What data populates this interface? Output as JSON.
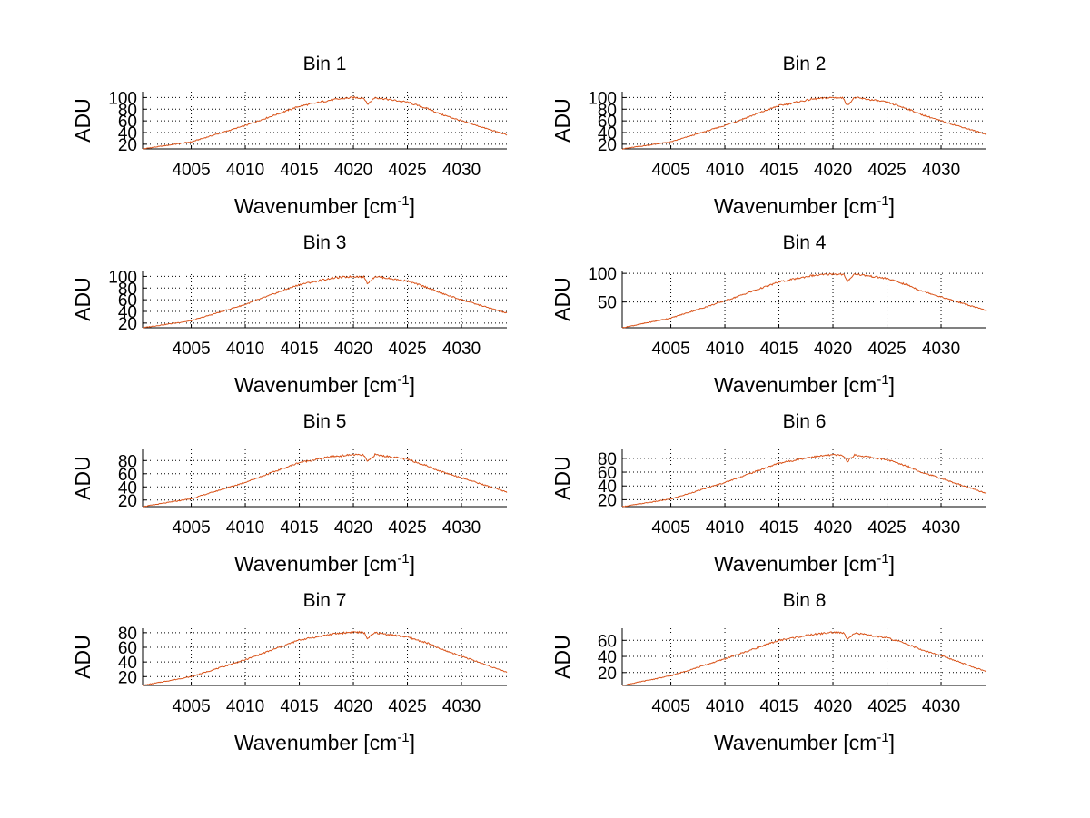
{
  "chart_data": [
    {
      "type": "line",
      "title": "Bin 1",
      "xlabel": "Wavenumber [cm",
      "xlabel_sup": "-1",
      "xlabel_end": "]",
      "ylabel": "ADU",
      "x": [
        4000.5,
        4005,
        4010,
        4015,
        4018,
        4020,
        4021,
        4021.3,
        4022,
        4025,
        4027,
        4028,
        4030,
        4034.2
      ],
      "y": [
        12,
        24,
        52,
        85,
        96,
        100,
        99,
        88,
        100,
        92,
        80,
        72,
        60,
        36
      ],
      "series_color": "#d95319",
      "xlim": [
        4000.5,
        4034.2
      ],
      "ylim": [
        12,
        110
      ],
      "xticks": [
        4005,
        4010,
        4015,
        4020,
        4025,
        4030
      ],
      "yticks": [
        20,
        40,
        60,
        80,
        100
      ]
    },
    {
      "type": "line",
      "title": "Bin 2",
      "xlabel": "Wavenumber [cm",
      "xlabel_sup": "-1",
      "xlabel_end": "]",
      "ylabel": "ADU",
      "x": [
        4000.5,
        4005,
        4010,
        4015,
        4018,
        4020,
        4021,
        4021.3,
        4022,
        4025,
        4027,
        4028,
        4030,
        4034.2
      ],
      "y": [
        12,
        24,
        52,
        86,
        97,
        100,
        99,
        86,
        100,
        92,
        80,
        72,
        60,
        37
      ],
      "series_color": "#d95319",
      "xlim": [
        4000.5,
        4034.2
      ],
      "ylim": [
        12,
        110
      ],
      "xticks": [
        4005,
        4010,
        4015,
        4020,
        4025,
        4030
      ],
      "yticks": [
        20,
        40,
        60,
        80,
        100
      ]
    },
    {
      "type": "line",
      "title": "Bin 3",
      "xlabel": "Wavenumber [cm",
      "xlabel_sup": "-1",
      "xlabel_end": "]",
      "ylabel": "ADU",
      "x": [
        4000.5,
        4005,
        4010,
        4015,
        4018,
        4020,
        4021,
        4021.3,
        4022,
        4025,
        4027,
        4028,
        4030,
        4034.2
      ],
      "y": [
        12,
        24,
        52,
        86,
        97,
        100,
        99,
        88,
        100,
        92,
        80,
        72,
        60,
        37
      ],
      "series_color": "#d95319",
      "xlim": [
        4000.5,
        4034.2
      ],
      "ylim": [
        12,
        110
      ],
      "xticks": [
        4005,
        4010,
        4015,
        4020,
        4025,
        4030
      ],
      "yticks": [
        20,
        40,
        60,
        80,
        100
      ]
    },
    {
      "type": "line",
      "title": "Bin 4",
      "xlabel": "Wavenumber [cm",
      "xlabel_sup": "-1",
      "xlabel_end": "]",
      "ylabel": "ADU",
      "x": [
        4000.5,
        4005,
        4010,
        4015,
        4018,
        4020,
        4021,
        4021.3,
        4022,
        4025,
        4027,
        4028,
        4030,
        4034.2
      ],
      "y": [
        5,
        22,
        52,
        85,
        96,
        99,
        98,
        86,
        99,
        91,
        79,
        71,
        59,
        35
      ],
      "series_color": "#d95319",
      "xlim": [
        4000.5,
        4034.2
      ],
      "ylim": [
        5,
        105
      ],
      "xticks": [
        4005,
        4010,
        4015,
        4020,
        4025,
        4030
      ],
      "yticks": [
        50,
        100
      ]
    },
    {
      "type": "line",
      "title": "Bin 5",
      "xlabel": "Wavenumber [cm",
      "xlabel_sup": "-1",
      "xlabel_end": "]",
      "ylabel": "ADU",
      "x": [
        4000.5,
        4005,
        4010,
        4015,
        4018,
        4020,
        4021,
        4021.3,
        4022,
        4025,
        4027,
        4028,
        4030,
        4034.2
      ],
      "y": [
        10,
        22,
        47,
        77,
        86,
        89,
        88,
        78,
        89,
        82,
        71,
        64,
        54,
        32
      ],
      "series_color": "#d95319",
      "xlim": [
        4000.5,
        4034.2
      ],
      "ylim": [
        10,
        97
      ],
      "xticks": [
        4005,
        4010,
        4015,
        4020,
        4025,
        4030
      ],
      "yticks": [
        20,
        40,
        60,
        80
      ]
    },
    {
      "type": "line",
      "title": "Bin 6",
      "xlabel": "Wavenumber [cm",
      "xlabel_sup": "-1",
      "xlabel_end": "]",
      "ylabel": "ADU",
      "x": [
        4000.5,
        4005,
        4010,
        4015,
        4018,
        4020,
        4021,
        4021.3,
        4022,
        4025,
        4027,
        4028,
        4030,
        4034.2
      ],
      "y": [
        10,
        21,
        45,
        73,
        82,
        85,
        84,
        75,
        85,
        78,
        68,
        61,
        51,
        29
      ],
      "series_color": "#d95319",
      "xlim": [
        4000.5,
        4034.2
      ],
      "ylim": [
        10,
        93
      ],
      "xticks": [
        4005,
        4010,
        4015,
        4020,
        4025,
        4030
      ],
      "yticks": [
        20,
        40,
        60,
        80
      ]
    },
    {
      "type": "line",
      "title": "Bin 7",
      "xlabel": "Wavenumber [cm",
      "xlabel_sup": "-1",
      "xlabel_end": "]",
      "ylabel": "ADU",
      "x": [
        4000.5,
        4005,
        4010,
        4015,
        4018,
        4020,
        4021,
        4021.3,
        4022,
        4025,
        4027,
        4028,
        4030,
        4034.2
      ],
      "y": [
        8,
        20,
        43,
        70,
        78,
        81,
        80,
        72,
        80,
        74,
        65,
        58,
        48,
        26
      ],
      "series_color": "#d95319",
      "xlim": [
        4000.5,
        4034.2
      ],
      "ylim": [
        8,
        86
      ],
      "xticks": [
        4005,
        4010,
        4015,
        4020,
        4025,
        4030
      ],
      "yticks": [
        20,
        40,
        60,
        80
      ]
    },
    {
      "type": "line",
      "title": "Bin 8",
      "xlabel": "Wavenumber [cm",
      "xlabel_sup": "-1",
      "xlabel_end": "]",
      "ylabel": "ADU",
      "x": [
        4000.5,
        4005,
        4010,
        4015,
        4018,
        4020,
        4021,
        4021.3,
        4022,
        4025,
        4027,
        4028,
        4030,
        4034.2
      ],
      "y": [
        4,
        16,
        37,
        60,
        67,
        70,
        69,
        62,
        69,
        63,
        55,
        49,
        41,
        21
      ],
      "series_color": "#d95319",
      "xlim": [
        4000.5,
        4034.2
      ],
      "ylim": [
        4,
        75
      ],
      "xticks": [
        4005,
        4010,
        4015,
        4020,
        4025,
        4030
      ],
      "yticks": [
        20,
        40,
        60
      ]
    }
  ]
}
